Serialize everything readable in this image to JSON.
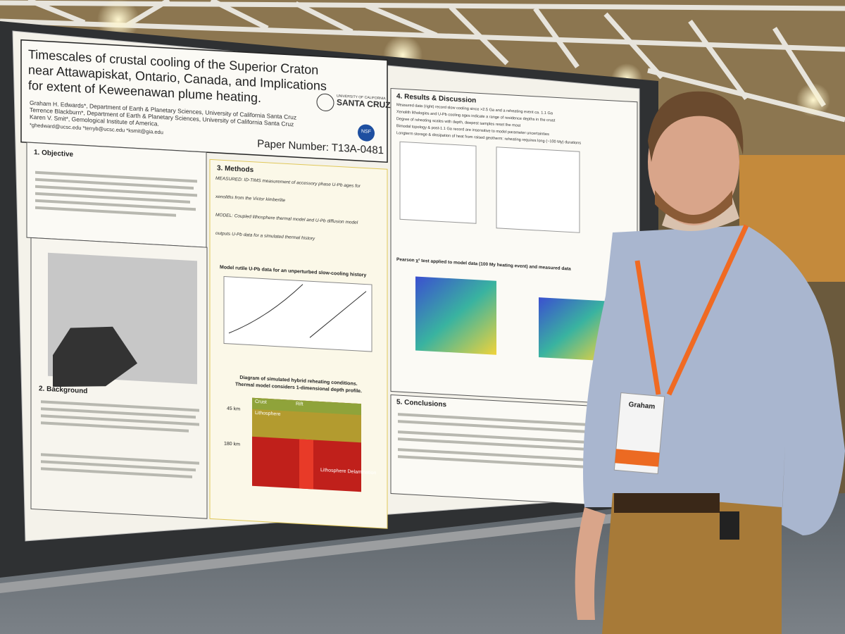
{
  "poster": {
    "title_lines": [
      "Timescales of crustal cooling of the Superior Craton",
      "near Attawapiskat, Ontario, Canada, and Implications",
      "for extent of Keweenawan plume heating."
    ],
    "authors": [
      "Graham H. Edwards*, Department of Earth & Planetary Sciences, University of California Santa Cruz",
      "Terrence Blackburn*, Department of Earth & Planetary Sciences, University of California Santa Cruz",
      "Karen V. Smit*, Gemological Institute of America."
    ],
    "emails": "*ghedward@ucsc.edu   *terryb@ucsc.edu   *ksmit@gia.edu",
    "logo": {
      "top": "UNIVERSITY OF CALIFORNIA",
      "name": "SANTA CRUZ"
    },
    "nsf": "NSF",
    "paper_number": "Paper Number: T13A-0481",
    "objective": {
      "heading": "1. Objective"
    },
    "background": {
      "heading": "2. Background"
    },
    "methods": {
      "heading": "3. Methods",
      "lines": [
        "MEASURED: ID-TIMS measurement of accessory phase U-Pb ages for",
        "xenoliths from the Victor kimberlite",
        "MODEL: Coupled lithosphere thermal model and U-Pb diffusion model",
        "outputs U-Pb data for a simulated thermal history"
      ],
      "figure_title": "Model rutile U-Pb data for an unperturbed slow-cooling history",
      "diagram_title": [
        "Diagram of simulated hybrid reheating conditions.",
        "Thermal model considers 1-dimensional depth profile."
      ],
      "diagram_labels": {
        "top_depth": "45 km",
        "bottom_depth": "180 km",
        "crust": "Crust",
        "lithosphere": "Lithosphere",
        "rift": "Rift",
        "delamination": "Lithosphere Delamination"
      }
    },
    "results": {
      "heading": "4. Results & Discussion",
      "bullets": [
        "Measured data (right) record slow cooling since >2.5 Ga and a reheating event ca. 1.1 Ga",
        "Xenolith lithologies and U-Pb cooling ages indicate a range of residence depths in the crust",
        "Degree of reheating scales with depth, deepest samples reset the most",
        "Bimodal topology & post-1.1 Ga record are insensitive to model parameter uncertainties",
        "Longterm storage & dissipation of heat from raised geotherm: reheating requires long (~100 My) durations"
      ],
      "pearson": "Pearson χ² test applied to model data (100 My heating event) and measured data"
    },
    "conclusions": {
      "heading": "5. Conclusions"
    }
  },
  "badge": {
    "name": "Graham"
  }
}
